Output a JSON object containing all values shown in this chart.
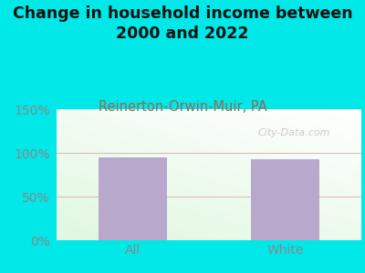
{
  "title": "Change in household income between\n2000 and 2022",
  "subtitle": "Reinerton-Orwin-Muir, PA",
  "categories": [
    "All",
    "White"
  ],
  "values": [
    95,
    93
  ],
  "bar_color": "#b8a8cc",
  "ylim": [
    0,
    150
  ],
  "yticks": [
    0,
    50,
    100,
    150
  ],
  "ytick_labels": [
    "0%",
    "50%",
    "100%",
    "150%"
  ],
  "bg_outer": "#00e8e8",
  "title_fontsize": 12.5,
  "title_color": "#111111",
  "subtitle_fontsize": 10.5,
  "subtitle_color": "#996655",
  "watermark": "City-Data.com",
  "tick_color": "#888888",
  "tick_fontsize": 10,
  "line_color": "#ddbbbb",
  "bar_width": 0.45
}
